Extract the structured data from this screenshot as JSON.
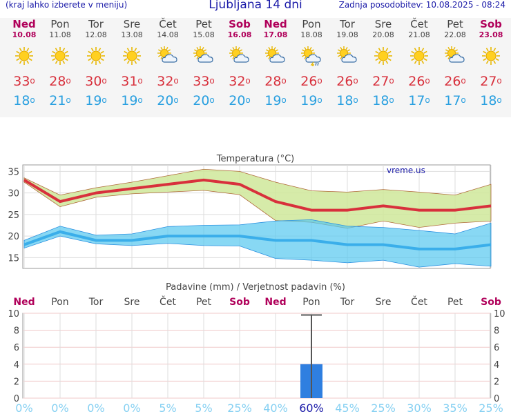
{
  "header": {
    "menu_hint": "(kraj lahko izberete v meniju)",
    "title": "Ljubljana 14 dni",
    "updated": "Zadnja posodobitev: 10.08.2025 - 08:24"
  },
  "days": [
    {
      "name": "Ned",
      "date": "10.08",
      "weekend": true,
      "icon": "sun-icon",
      "max": "33",
      "min": "18"
    },
    {
      "name": "Pon",
      "date": "11.08",
      "weekend": false,
      "icon": "sun-icon",
      "max": "28",
      "min": "21"
    },
    {
      "name": "Tor",
      "date": "12.08",
      "weekend": false,
      "icon": "sun-icon",
      "max": "30",
      "min": "19"
    },
    {
      "name": "Sre",
      "date": "13.08",
      "weekend": false,
      "icon": "sun-icon",
      "max": "31",
      "min": "19"
    },
    {
      "name": "Čet",
      "date": "14.08",
      "weekend": false,
      "icon": "partly-cloudy-icon",
      "max": "32",
      "min": "20"
    },
    {
      "name": "Pet",
      "date": "15.08",
      "weekend": false,
      "icon": "partly-cloudy-icon",
      "max": "33",
      "min": "20"
    },
    {
      "name": "Sob",
      "date": "16.08",
      "weekend": true,
      "icon": "partly-cloudy-icon",
      "max": "32",
      "min": "20"
    },
    {
      "name": "Ned",
      "date": "17.08",
      "weekend": true,
      "icon": "partly-cloudy-icon",
      "max": "28",
      "min": "19"
    },
    {
      "name": "Pon",
      "date": "18.08",
      "weekend": false,
      "icon": "thunder-rain-icon",
      "max": "26",
      "min": "19"
    },
    {
      "name": "Tor",
      "date": "19.08",
      "weekend": false,
      "icon": "partly-cloudy-icon",
      "max": "26",
      "min": "18"
    },
    {
      "name": "Sre",
      "date": "20.08",
      "weekend": false,
      "icon": "sun-icon",
      "max": "27",
      "min": "18"
    },
    {
      "name": "Čet",
      "date": "21.08",
      "weekend": false,
      "icon": "sun-icon",
      "max": "26",
      "min": "17"
    },
    {
      "name": "Pet",
      "date": "22.08",
      "weekend": false,
      "icon": "partly-cloudy-icon",
      "max": "26",
      "min": "17"
    },
    {
      "name": "Sob",
      "date": "23.08",
      "weekend": true,
      "icon": "sun-icon",
      "max": "27",
      "min": "18"
    }
  ],
  "colors": {
    "max_line": "#d8303c",
    "min_line": "#3aaeea",
    "max_band": "#cfe89a",
    "min_band": "#56c8f0",
    "weekend": "#b0005a",
    "precip_bar": "#2f7fe0",
    "prob_text": "#85d0f2",
    "prob_highlight": "#1a1aa8"
  },
  "chart_data": [
    {
      "type": "line",
      "title": "Temperatura",
      "title_unit": "(°C)",
      "watermark": "vreme.us",
      "ylim": [
        12.5,
        36.5
      ],
      "yticks": [
        15,
        20,
        25,
        30,
        35
      ],
      "series": [
        {
          "name": "max",
          "values": [
            33,
            28,
            30,
            31,
            32,
            33,
            32,
            28,
            26,
            26,
            27,
            26,
            26,
            27
          ],
          "band_upper": [
            33.5,
            29.5,
            31.2,
            32.5,
            34,
            35.5,
            35,
            32.5,
            30.5,
            30.2,
            30.8,
            30.2,
            29.5,
            32
          ],
          "band_lower": [
            32.5,
            26.8,
            29,
            29.8,
            30.2,
            30.6,
            29.6,
            23.6,
            23.2,
            21.8,
            23.5,
            22,
            23,
            23.5
          ]
        },
        {
          "name": "min",
          "values": [
            18,
            21,
            19,
            19,
            20,
            20,
            20,
            19,
            19,
            18,
            18,
            17,
            17,
            18
          ],
          "band_upper": [
            19,
            22.3,
            20.2,
            20.5,
            22.2,
            22.5,
            22.6,
            23.5,
            23.8,
            22.3,
            22,
            21.3,
            20.5,
            23
          ],
          "band_lower": [
            17.2,
            20,
            18.2,
            17.8,
            18.3,
            17.8,
            17.7,
            14.8,
            14.4,
            13.8,
            14.4,
            12.8,
            13.6,
            13
          ]
        }
      ]
    },
    {
      "type": "bar",
      "title": "Padavine (mm) / Verjetnost padavin (%)",
      "categories": [
        "Ned",
        "Pon",
        "Tor",
        "Sre",
        "Čet",
        "Pet",
        "Sob",
        "Ned",
        "Pon",
        "Tor",
        "Sre",
        "Čet",
        "Pet",
        "Sob"
      ],
      "weekend": [
        true,
        false,
        false,
        false,
        false,
        false,
        true,
        true,
        false,
        false,
        false,
        false,
        false,
        true
      ],
      "values": [
        0,
        0,
        0,
        0,
        0,
        0,
        0,
        0,
        4,
        0,
        0,
        0,
        0,
        0
      ],
      "error_high": [
        0,
        0,
        0,
        0,
        0,
        0,
        0,
        0,
        9.8,
        0,
        0,
        0,
        0,
        0
      ],
      "probability": [
        "0%",
        "0%",
        "0%",
        "0%",
        "5%",
        "5%",
        "25%",
        "40%",
        "60%",
        "45%",
        "25%",
        "30%",
        "35%",
        "25%"
      ],
      "ylim": [
        0,
        10
      ],
      "yticks": [
        0,
        2,
        4,
        6,
        8,
        10
      ]
    }
  ]
}
